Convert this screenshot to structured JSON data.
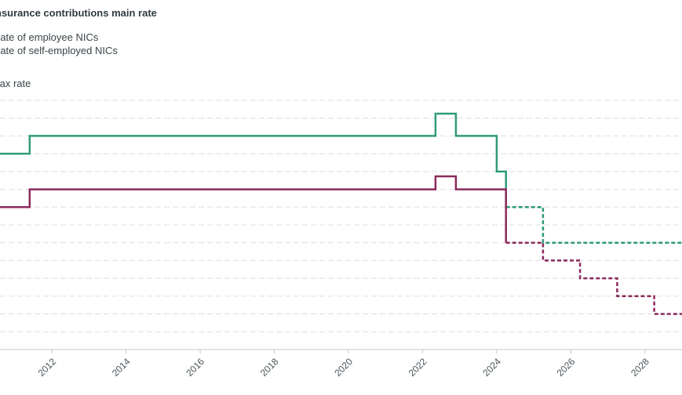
{
  "title": "nsurance contributions main rate",
  "legend": [
    {
      "label": "rate of employee NICs",
      "color": "#2e9a78"
    },
    {
      "label": "rate of self-employed NICs",
      "color": "#8b2a5c"
    }
  ],
  "ylabel": "tax rate",
  "chart_data": {
    "type": "line",
    "title": "nsurance contributions main rate",
    "ylabel": "tax rate",
    "xlabel": "",
    "x_range": [
      2010.6,
      2029.0
    ],
    "y_range": [
      0,
      14
    ],
    "x_ticks": [
      2012,
      2014,
      2016,
      2018,
      2020,
      2022,
      2024,
      2026,
      2028
    ],
    "grid": true,
    "grid_lines": 14,
    "series": [
      {
        "name": "rate of employee NICs",
        "color": "#2e9a78",
        "solid": [
          [
            2010.6,
            11
          ],
          [
            2011.4,
            11
          ],
          [
            2011.4,
            12
          ],
          [
            2022.35,
            12
          ],
          [
            2022.35,
            13.25
          ],
          [
            2022.9,
            13.25
          ],
          [
            2022.9,
            12
          ],
          [
            2024.0,
            12
          ],
          [
            2024.0,
            10
          ],
          [
            2024.25,
            10
          ],
          [
            2024.25,
            8
          ]
        ],
        "dashed": [
          [
            2024.25,
            8
          ],
          [
            2025.25,
            8
          ],
          [
            2025.25,
            6
          ],
          [
            2029.0,
            6
          ]
        ]
      },
      {
        "name": "rate of self-employed NICs",
        "color": "#8b2a5c",
        "solid": [
          [
            2010.6,
            8
          ],
          [
            2011.4,
            8
          ],
          [
            2011.4,
            9
          ],
          [
            2022.35,
            9
          ],
          [
            2022.35,
            9.73
          ],
          [
            2022.9,
            9.73
          ],
          [
            2022.9,
            9
          ],
          [
            2024.25,
            9
          ],
          [
            2024.25,
            6
          ]
        ],
        "dashed": [
          [
            2024.25,
            6
          ],
          [
            2025.25,
            6
          ],
          [
            2025.25,
            5
          ],
          [
            2026.25,
            5
          ],
          [
            2026.25,
            4
          ],
          [
            2027.25,
            4
          ],
          [
            2027.25,
            3
          ],
          [
            2028.25,
            3
          ],
          [
            2028.25,
            2
          ],
          [
            2029.0,
            2
          ]
        ]
      }
    ]
  }
}
